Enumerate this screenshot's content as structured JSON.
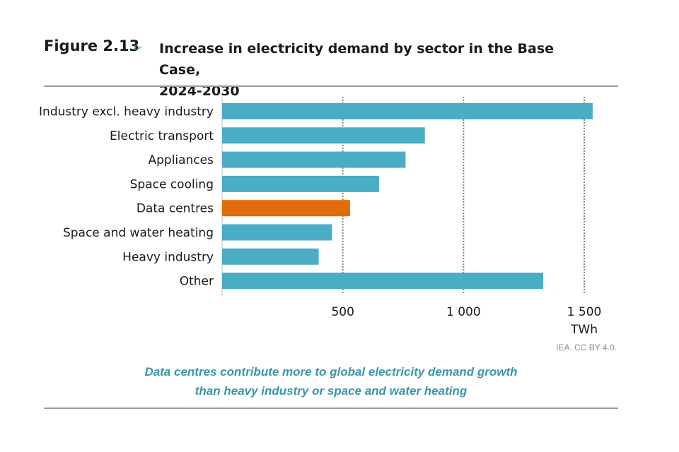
{
  "figure": {
    "label": "Figure 2.13",
    "arrow_icon": "triangle-right-outline",
    "title_line1": "Increase in electricity demand by sector in the Base Case,",
    "title_line2": "2024-2030"
  },
  "source": "IEA. CC BY 4.0.",
  "caption": {
    "line1": "Data centres contribute more to global electricity demand growth",
    "line2": "than heavy industry or space and water heating"
  },
  "colors": {
    "bar": "#4bacc6",
    "highlight": "#e36c0a",
    "grid": "#888888",
    "text": "#1a1a1a"
  },
  "chart_data": {
    "type": "bar",
    "orientation": "horizontal",
    "title": "Increase in electricity demand by sector in the Base Case, 2024-2030",
    "categories": [
      "Industry excl. heavy industry",
      "Electric transport",
      "Appliances",
      "Space cooling",
      "Data centres",
      "Space and water heating",
      "Heavy industry",
      "Other"
    ],
    "values": [
      1535,
      840,
      760,
      650,
      530,
      455,
      400,
      1330
    ],
    "highlight_category": "Data centres",
    "xlabel": "TWh",
    "xlim": [
      0,
      1500
    ],
    "ticks": [
      500,
      1000,
      1500
    ],
    "tick_labels": [
      "500",
      "1 000",
      "1 500"
    ],
    "grid": "vertical dotted"
  }
}
